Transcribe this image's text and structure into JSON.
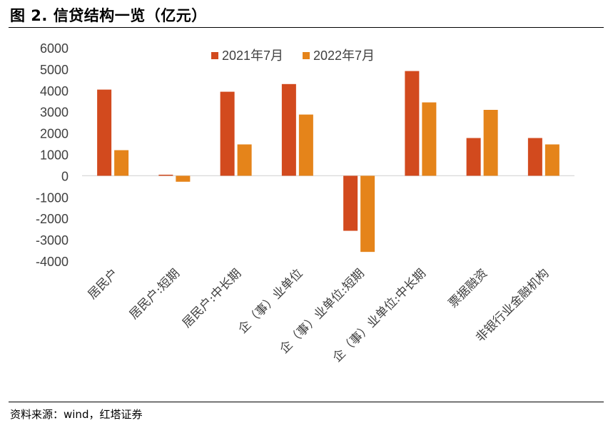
{
  "header": {
    "title": "图 2. 信贷结构一览（亿元）"
  },
  "footer": {
    "source": "资料来源：wind，红塔证券"
  },
  "colors": {
    "series1": "#D24A1E",
    "series2": "#E5841A",
    "axis": "#D9D9D9",
    "text": "#404040"
  },
  "chart_data": {
    "type": "bar",
    "title": "信贷结构一览（亿元）",
    "xlabel": "",
    "ylabel": "",
    "ylim": [
      -4000,
      6000
    ],
    "yticks": [
      6000,
      5000,
      4000,
      3000,
      2000,
      1000,
      0,
      -1000,
      -2000,
      -3000,
      -4000
    ],
    "ytick_labels": [
      "6000",
      "5000",
      "4000",
      "3000",
      "2000",
      "1000",
      "0",
      "-1000",
      "-2000",
      "-3000",
      "-4000"
    ],
    "legend_position": "top-center",
    "categories": [
      "居民户",
      "居民户:短期",
      "居民户:中长期",
      "企（事）业单位",
      "企（事）业单位:短期",
      "企（事）业单位:中长期",
      "票据融资",
      "非银行业金融机构"
    ],
    "series": [
      {
        "name": "2021年7月",
        "values": [
          4040,
          50,
          3940,
          4300,
          -2580,
          4910,
          1770,
          1770
        ]
      },
      {
        "name": "2022年7月",
        "values": [
          1200,
          -280,
          1470,
          2870,
          -3570,
          3440,
          3090,
          1470
        ]
      }
    ]
  }
}
